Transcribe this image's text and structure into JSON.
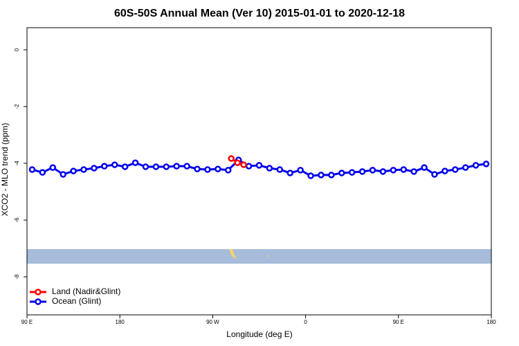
{
  "chart_data": {
    "type": "line",
    "title": "60S-50S Annual Mean (Ver 10)   2015-01-01 to 2020-12-18",
    "x_label": "Longitude (deg E)",
    "y_label": "XCO2 - MLO trend (ppm)",
    "xlim": [
      90,
      540
    ],
    "ylim": [
      -9.34,
      0.78
    ],
    "xticks": [
      {
        "value": 90,
        "label": "90 E"
      },
      180,
      {
        "value": 270,
        "label": "90 W"
      },
      {
        "value": 360,
        "label": "0"
      },
      {
        "value": 450,
        "label": "90 E"
      },
      {
        "value": 540,
        "label": "180"
      }
    ],
    "yticks": [
      0,
      -2,
      -4,
      -6,
      -8
    ],
    "legend": "bottom-left",
    "series": [
      {
        "name": "Land (Nadir&Glint)",
        "color": "#ff0000",
        "x": [
          288,
          294,
          300
        ],
        "values": [
          -3.83,
          -3.98,
          -4.05
        ]
      },
      {
        "name": "Ocean (Glint)",
        "color": "#0000ee",
        "x": [
          95,
          105,
          115,
          125,
          135,
          145,
          155,
          165,
          175,
          185,
          195,
          205,
          215,
          225,
          235,
          245,
          255,
          265,
          275,
          285,
          295,
          305,
          315,
          325,
          335,
          345,
          355,
          365,
          375,
          385,
          395,
          405,
          415,
          425,
          435,
          445,
          455,
          465,
          475,
          485,
          495,
          505,
          515,
          525,
          535
        ],
        "values": [
          -4.22,
          -4.32,
          -4.15,
          -4.39,
          -4.27,
          -4.22,
          -4.17,
          -4.1,
          -4.05,
          -4.12,
          -3.98,
          -4.12,
          -4.12,
          -4.12,
          -4.1,
          -4.1,
          -4.2,
          -4.22,
          -4.2,
          -4.24,
          -3.88,
          -4.1,
          -4.07,
          -4.17,
          -4.22,
          -4.34,
          -4.24,
          -4.44,
          -4.41,
          -4.41,
          -4.34,
          -4.32,
          -4.29,
          -4.24,
          -4.29,
          -4.24,
          -4.22,
          -4.29,
          -4.15,
          -4.39,
          -4.27,
          -4.22,
          -4.15,
          -4.07,
          -4.02
        ]
      }
    ]
  }
}
